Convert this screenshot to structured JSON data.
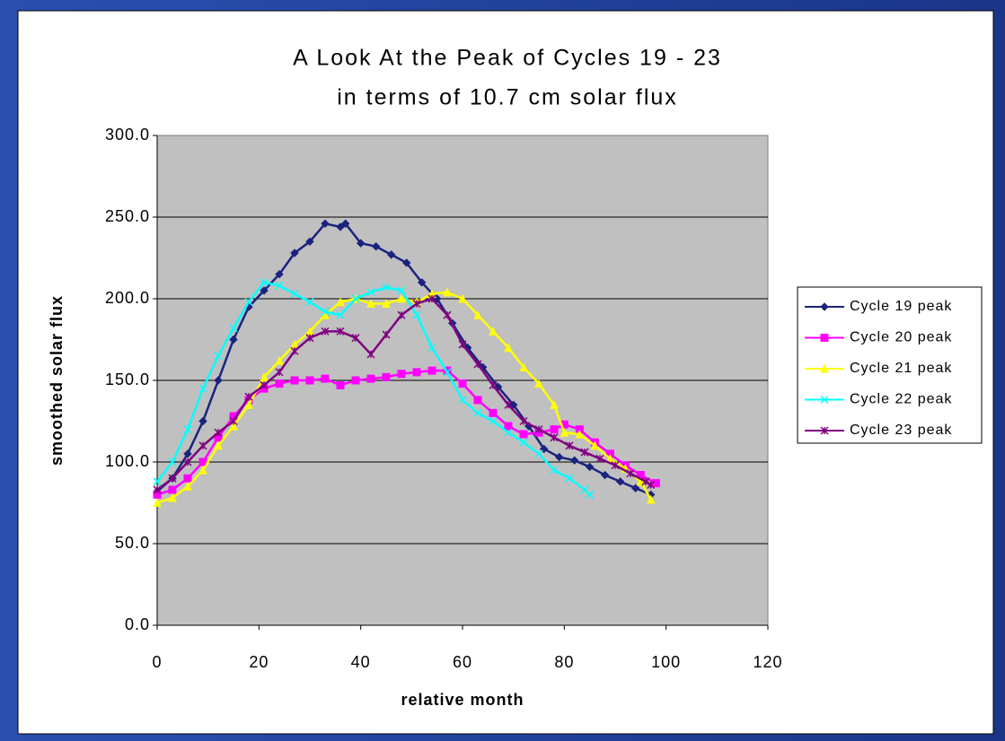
{
  "chart_data": {
    "type": "line",
    "title": "A Look At the Peak of Cycles 19 - 23",
    "subtitle": "in terms of 10.7 cm solar flux",
    "x_label": "relative month",
    "y_label": "smoothed solar flux",
    "xlim": [
      0,
      120
    ],
    "xticks": [
      0,
      20,
      40,
      60,
      80,
      100,
      120
    ],
    "ylim": [
      0,
      300
    ],
    "yticks": [
      {
        "value": 0,
        "label": "0.0"
      },
      {
        "value": 50,
        "label": "50.0"
      },
      {
        "value": 100,
        "label": "100.0"
      },
      {
        "value": 150,
        "label": "150.0"
      },
      {
        "value": 200,
        "label": "200.0"
      },
      {
        "value": 250,
        "label": "250.0"
      },
      {
        "value": 300,
        "label": "300.0"
      }
    ],
    "grid": true,
    "legend": "right",
    "series": [
      {
        "name": "Cycle 19 peak",
        "color": "#1a237e",
        "marker": "diamond",
        "x": [
          0,
          3,
          6,
          9,
          12,
          15,
          18,
          21,
          24,
          27,
          30,
          33,
          36,
          37,
          40,
          43,
          46,
          49,
          52,
          55,
          58,
          61,
          64,
          67,
          70,
          73,
          76,
          79,
          82,
          85,
          88,
          91,
          94,
          97
        ],
        "values": [
          82,
          90,
          105,
          125,
          150,
          175,
          195,
          205,
          215,
          228,
          235,
          246,
          244,
          246,
          234,
          232,
          227,
          222,
          210,
          200,
          185,
          170,
          158,
          146,
          135,
          122,
          108,
          103,
          101,
          97,
          92,
          88,
          84,
          80
        ]
      },
      {
        "name": "Cycle 20 peak",
        "color": "#ff00ff",
        "marker": "square",
        "x": [
          0,
          3,
          6,
          9,
          12,
          15,
          18,
          21,
          24,
          27,
          30,
          33,
          36,
          39,
          42,
          45,
          48,
          51,
          54,
          57,
          60,
          63,
          66,
          69,
          72,
          75,
          78,
          80,
          83,
          86,
          89,
          92,
          95,
          98
        ],
        "values": [
          80,
          83,
          90,
          100,
          115,
          128,
          138,
          145,
          148,
          150,
          150,
          151,
          147,
          150,
          151,
          152,
          154,
          155,
          156,
          156,
          148,
          138,
          130,
          122,
          117,
          118,
          120,
          123,
          120,
          112,
          105,
          98,
          92,
          87
        ]
      },
      {
        "name": "Cycle 21 peak",
        "color": "#ffff00",
        "marker": "triangle",
        "x": [
          0,
          3,
          6,
          9,
          12,
          15,
          18,
          21,
          24,
          27,
          30,
          33,
          36,
          39,
          42,
          45,
          48,
          51,
          54,
          57,
          60,
          63,
          66,
          69,
          72,
          75,
          78,
          80,
          83,
          86,
          89,
          92,
          95,
          97
        ],
        "values": [
          75,
          78,
          85,
          95,
          110,
          122,
          135,
          152,
          162,
          172,
          180,
          190,
          198,
          200,
          197,
          197,
          200,
          198,
          203,
          204,
          200,
          190,
          180,
          170,
          158,
          148,
          135,
          118,
          117,
          110,
          102,
          96,
          88,
          77
        ]
      },
      {
        "name": "Cycle 22 peak",
        "color": "#00ffff",
        "marker": "x",
        "x": [
          0,
          3,
          6,
          9,
          12,
          15,
          18,
          21,
          24,
          27,
          30,
          33,
          36,
          39,
          42,
          45,
          48,
          51,
          54,
          57,
          60,
          63,
          66,
          69,
          72,
          75,
          78,
          81,
          84,
          85
        ],
        "values": [
          88,
          100,
          120,
          145,
          165,
          182,
          198,
          210,
          208,
          203,
          198,
          192,
          190,
          200,
          204,
          207,
          205,
          190,
          170,
          155,
          138,
          130,
          125,
          118,
          112,
          105,
          95,
          90,
          83,
          80
        ]
      },
      {
        "name": "Cycle 23 peak",
        "color": "#800080",
        "marker": "star",
        "x": [
          0,
          3,
          6,
          9,
          12,
          15,
          18,
          21,
          24,
          27,
          30,
          33,
          36,
          39,
          42,
          45,
          48,
          51,
          54,
          57,
          60,
          63,
          66,
          69,
          72,
          75,
          78,
          81,
          84,
          87,
          90,
          93,
          96,
          97
        ],
        "values": [
          83,
          90,
          100,
          110,
          118,
          125,
          140,
          147,
          155,
          168,
          176,
          180,
          180,
          176,
          166,
          178,
          190,
          197,
          200,
          190,
          172,
          160,
          147,
          135,
          125,
          120,
          115,
          110,
          106,
          102,
          98,
          93,
          88,
          86
        ]
      }
    ]
  }
}
